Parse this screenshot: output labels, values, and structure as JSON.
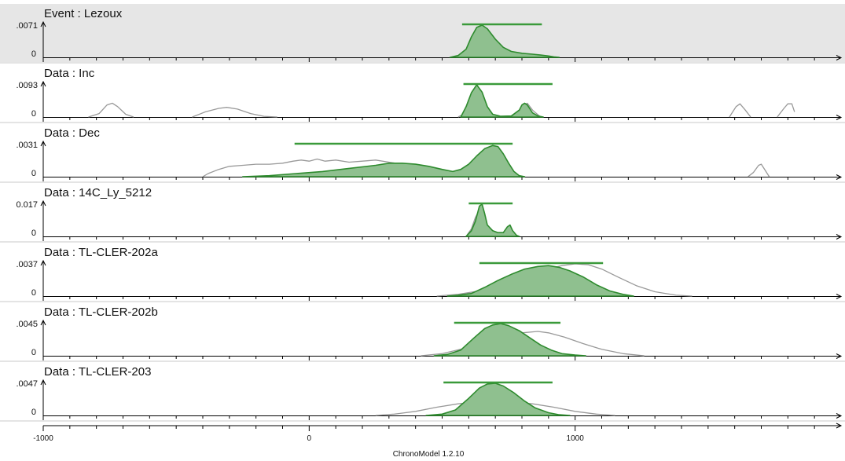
{
  "app_name": "ChronoModel 1.2.10",
  "colors": {
    "posterior_fill": "#8fc08f",
    "posterior_line": "#2e8b2e",
    "hpd_bar": "#3a9a3a",
    "prior_line": "#999999",
    "event_panel_bg": "#e6e6e6",
    "data_panel_bg": "#ffffff"
  },
  "chart_data": {
    "type": "area",
    "x_axis": {
      "min": -1000,
      "max": 2000,
      "ticks": [
        -1000,
        0,
        1000
      ],
      "minor_step": 100
    },
    "panels": [
      {
        "title": "Event : Lezoux",
        "kind": "event",
        "ymax_label": ".0071",
        "ymin_label": "0",
        "hpd": [
          575,
          875
        ],
        "posterior": [
          [
            530,
            0
          ],
          [
            560,
            0.0004
          ],
          [
            590,
            0.0018
          ],
          [
            610,
            0.0045
          ],
          [
            630,
            0.0066
          ],
          [
            650,
            0.0071
          ],
          [
            670,
            0.0063
          ],
          [
            700,
            0.004
          ],
          [
            730,
            0.0022
          ],
          [
            760,
            0.0013
          ],
          [
            800,
            0.0009
          ],
          [
            840,
            0.0007
          ],
          [
            870,
            0.0005
          ],
          [
            900,
            0.0003
          ],
          [
            920,
            0.0001
          ],
          [
            940,
            0
          ]
        ],
        "prior": []
      },
      {
        "title": "Data : Inc",
        "kind": "data",
        "ymax_label": ".0093",
        "ymin_label": "0",
        "hpd": [
          580,
          915
        ],
        "posterior": [
          [
            570,
            0
          ],
          [
            590,
            0.003
          ],
          [
            610,
            0.007
          ],
          [
            630,
            0.0093
          ],
          [
            650,
            0.0072
          ],
          [
            670,
            0.003
          ],
          [
            690,
            0.0008
          ],
          [
            720,
            0.0002
          ],
          [
            760,
            0.0003
          ],
          [
            790,
            0.002
          ],
          [
            800,
            0.0035
          ],
          [
            810,
            0.004
          ],
          [
            820,
            0.0035
          ],
          [
            840,
            0.0012
          ],
          [
            860,
            0.0003
          ],
          [
            880,
            0
          ]
        ],
        "prior": [
          [
            -830,
            0
          ],
          [
            -790,
            0.001
          ],
          [
            -760,
            0.0035
          ],
          [
            -740,
            0.004
          ],
          [
            -720,
            0.003
          ],
          [
            -690,
            0.0008
          ],
          [
            -660,
            0
          ],
          [
            -440,
            0
          ],
          [
            -390,
            0.0015
          ],
          [
            -340,
            0.0025
          ],
          [
            -310,
            0.0028
          ],
          [
            -270,
            0.0023
          ],
          [
            -220,
            0.001
          ],
          [
            -170,
            0.0002
          ],
          [
            -120,
            0
          ],
          [
            560,
            0
          ],
          [
            590,
            0.0012
          ],
          [
            610,
            0.003
          ],
          [
            625,
            0.004
          ],
          [
            640,
            0.003
          ],
          [
            665,
            0.0008
          ],
          [
            700,
            0
          ],
          [
            775,
            0
          ],
          [
            800,
            0.003
          ],
          [
            820,
            0.004
          ],
          [
            840,
            0.002
          ],
          [
            870,
            0
          ],
          [
            1580,
            0
          ],
          [
            1605,
            0.003
          ],
          [
            1620,
            0.0038
          ],
          [
            1640,
            0.002
          ],
          [
            1660,
            0
          ],
          [
            1760,
            0
          ],
          [
            1785,
            0.0025
          ],
          [
            1800,
            0.0038
          ],
          [
            1815,
            0.0038
          ],
          [
            1825,
            0.0015
          ]
        ]
      },
      {
        "title": "Data : Dec",
        "kind": "data",
        "ymax_label": ".0031",
        "ymin_label": "0",
        "hpd": [
          -55,
          765
        ],
        "posterior": [
          [
            -250,
            0
          ],
          [
            -150,
            0.0001
          ],
          [
            -50,
            0.0003
          ],
          [
            50,
            0.0005
          ],
          [
            150,
            0.0008
          ],
          [
            250,
            0.0011
          ],
          [
            300,
            0.0013
          ],
          [
            350,
            0.0013
          ],
          [
            400,
            0.0012
          ],
          [
            450,
            0.001
          ],
          [
            500,
            0.0007
          ],
          [
            540,
            0.0005
          ],
          [
            570,
            0.0007
          ],
          [
            600,
            0.0012
          ],
          [
            630,
            0.002
          ],
          [
            660,
            0.0027
          ],
          [
            690,
            0.003
          ],
          [
            710,
            0.0029
          ],
          [
            730,
            0.0022
          ],
          [
            750,
            0.0013
          ],
          [
            770,
            0.0005
          ],
          [
            790,
            0.0001
          ],
          [
            810,
            0
          ]
        ],
        "prior": [
          [
            -400,
            0
          ],
          [
            -380,
            0.0003
          ],
          [
            -340,
            0.0007
          ],
          [
            -300,
            0.001
          ],
          [
            -250,
            0.0011
          ],
          [
            -200,
            0.0012
          ],
          [
            -150,
            0.0012
          ],
          [
            -100,
            0.0013
          ],
          [
            -60,
            0.0015
          ],
          [
            -30,
            0.0016
          ],
          [
            0,
            0.0015
          ],
          [
            30,
            0.0017
          ],
          [
            60,
            0.0015
          ],
          [
            100,
            0.0016
          ],
          [
            150,
            0.0014
          ],
          [
            200,
            0.0015
          ],
          [
            250,
            0.0016
          ],
          [
            300,
            0.0014
          ],
          [
            350,
            0.0012
          ],
          [
            400,
            0.0011
          ],
          [
            450,
            0.0008
          ],
          [
            500,
            0.0005
          ],
          [
            560,
            0.0001
          ],
          [
            600,
            0
          ],
          [
            800,
            0
          ],
          [
            1650,
            0
          ],
          [
            1670,
            0.0004
          ],
          [
            1690,
            0.0011
          ],
          [
            1700,
            0.0012
          ],
          [
            1710,
            0.0008
          ],
          [
            1730,
            0
          ]
        ]
      },
      {
        "title": "Data : 14C_Ly_5212",
        "kind": "data",
        "ymax_label": "0.017",
        "ymin_label": "0",
        "hpd": [
          600,
          765
        ],
        "posterior": [
          [
            590,
            0
          ],
          [
            610,
            0.003
          ],
          [
            625,
            0.008
          ],
          [
            640,
            0.016
          ],
          [
            650,
            0.017
          ],
          [
            660,
            0.012
          ],
          [
            670,
            0.006
          ],
          [
            690,
            0.003
          ],
          [
            710,
            0.002
          ],
          [
            730,
            0.002
          ],
          [
            745,
            0.005
          ],
          [
            755,
            0.006
          ],
          [
            765,
            0.003
          ],
          [
            780,
            0.0005
          ],
          [
            790,
            0
          ]
        ],
        "prior": [
          [
            590,
            0
          ],
          [
            610,
            0.004
          ],
          [
            625,
            0.01
          ],
          [
            640,
            0.014
          ],
          [
            650,
            0.015
          ],
          [
            660,
            0.011
          ],
          [
            670,
            0.006
          ],
          [
            690,
            0.003
          ],
          [
            710,
            0.002
          ],
          [
            730,
            0.002
          ],
          [
            745,
            0.005
          ],
          [
            755,
            0.006
          ],
          [
            765,
            0.003
          ],
          [
            780,
            0.0005
          ],
          [
            790,
            0
          ]
        ]
      },
      {
        "title": "Data : TL-CLER-202a",
        "kind": "data",
        "ymax_label": ".0037",
        "ymin_label": "0",
        "hpd": [
          640,
          1105
        ],
        "posterior": [
          [
            520,
            0
          ],
          [
            560,
            0.0001
          ],
          [
            610,
            0.0003
          ],
          [
            660,
            0.001
          ],
          [
            710,
            0.0018
          ],
          [
            760,
            0.0025
          ],
          [
            810,
            0.0031
          ],
          [
            860,
            0.0034
          ],
          [
            900,
            0.0035
          ],
          [
            940,
            0.0033
          ],
          [
            980,
            0.0029
          ],
          [
            1030,
            0.0022
          ],
          [
            1080,
            0.0013
          ],
          [
            1130,
            0.0006
          ],
          [
            1180,
            0.0002
          ],
          [
            1220,
            0
          ]
        ],
        "prior": [
          [
            480,
            0
          ],
          [
            560,
            0.0002
          ],
          [
            640,
            0.0006
          ],
          [
            720,
            0.0013
          ],
          [
            800,
            0.0022
          ],
          [
            880,
            0.003
          ],
          [
            950,
            0.0035
          ],
          [
            1000,
            0.0037
          ],
          [
            1050,
            0.0036
          ],
          [
            1100,
            0.0031
          ],
          [
            1160,
            0.0022
          ],
          [
            1230,
            0.0012
          ],
          [
            1300,
            0.0005
          ],
          [
            1380,
            0.0001
          ],
          [
            1440,
            0
          ]
        ]
      },
      {
        "title": "Data : TL-CLER-202b",
        "kind": "data",
        "ymax_label": ".0045",
        "ymin_label": "0",
        "hpd": [
          545,
          945
        ],
        "posterior": [
          [
            470,
            0
          ],
          [
            520,
            0.0002
          ],
          [
            570,
            0.0008
          ],
          [
            620,
            0.0025
          ],
          [
            660,
            0.0038
          ],
          [
            690,
            0.0043
          ],
          [
            720,
            0.0045
          ],
          [
            750,
            0.0042
          ],
          [
            790,
            0.0035
          ],
          [
            830,
            0.0025
          ],
          [
            870,
            0.0015
          ],
          [
            910,
            0.0008
          ],
          [
            950,
            0.0003
          ],
          [
            1000,
            0.0001
          ],
          [
            1040,
            0
          ]
        ],
        "prior": [
          [
            420,
            0
          ],
          [
            500,
            0.0003
          ],
          [
            580,
            0.001
          ],
          [
            660,
            0.002
          ],
          [
            740,
            0.0028
          ],
          [
            800,
            0.0032
          ],
          [
            860,
            0.0034
          ],
          [
            900,
            0.0032
          ],
          [
            960,
            0.0026
          ],
          [
            1030,
            0.0017
          ],
          [
            1100,
            0.0009
          ],
          [
            1180,
            0.0003
          ],
          [
            1260,
            0
          ]
        ]
      },
      {
        "title": "Data : TL-CLER-203",
        "kind": "data",
        "ymax_label": ".0047",
        "ymin_label": "0",
        "hpd": [
          505,
          915
        ],
        "posterior": [
          [
            440,
            0
          ],
          [
            500,
            0.0002
          ],
          [
            550,
            0.0008
          ],
          [
            600,
            0.0025
          ],
          [
            640,
            0.004
          ],
          [
            670,
            0.0046
          ],
          [
            700,
            0.0047
          ],
          [
            730,
            0.0043
          ],
          [
            770,
            0.0033
          ],
          [
            810,
            0.0021
          ],
          [
            850,
            0.0011
          ],
          [
            900,
            0.0004
          ],
          [
            940,
            0.0001
          ],
          [
            980,
            0
          ]
        ],
        "prior": [
          [
            250,
            0
          ],
          [
            320,
            0.0002
          ],
          [
            400,
            0.0006
          ],
          [
            480,
            0.0012
          ],
          [
            560,
            0.0017
          ],
          [
            640,
            0.002
          ],
          [
            700,
            0.0021
          ],
          [
            760,
            0.002
          ],
          [
            840,
            0.0017
          ],
          [
            920,
            0.0012
          ],
          [
            1000,
            0.0006
          ],
          [
            1080,
            0.0002
          ],
          [
            1150,
            0
          ]
        ]
      }
    ]
  }
}
